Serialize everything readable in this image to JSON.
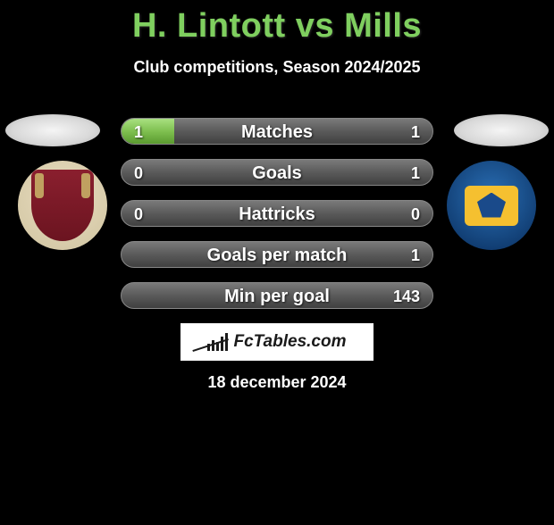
{
  "title": "H. Lintott vs Mills",
  "subtitle": "Club competitions, Season 2024/2025",
  "date": "18 december 2024",
  "logo_text": "FcTables.com",
  "colors": {
    "accent": "#7fcf5f",
    "bar_bg": "#5a5a5a",
    "fill_green": "#7fc050",
    "text": "#ffffff",
    "background": "#000000"
  },
  "left_player": {
    "club_badge_bg": "#d0c4a0",
    "shield_color": "#8a1f2e"
  },
  "right_player": {
    "club_badge_bg": "#0f3a6e",
    "inner_color": "#f5c030"
  },
  "stats": [
    {
      "label": "Matches",
      "left_val": "1",
      "right_val": "1",
      "left_pct": 17,
      "right_pct": 0
    },
    {
      "label": "Goals",
      "left_val": "0",
      "right_val": "1",
      "left_pct": 0,
      "right_pct": 0
    },
    {
      "label": "Hattricks",
      "left_val": "0",
      "right_val": "0",
      "left_pct": 0,
      "right_pct": 0
    },
    {
      "label": "Goals per match",
      "left_val": "",
      "right_val": "1",
      "left_pct": 0,
      "right_pct": 0
    },
    {
      "label": "Min per goal",
      "left_val": "",
      "right_val": "143",
      "left_pct": 0,
      "right_pct": 0
    }
  ]
}
